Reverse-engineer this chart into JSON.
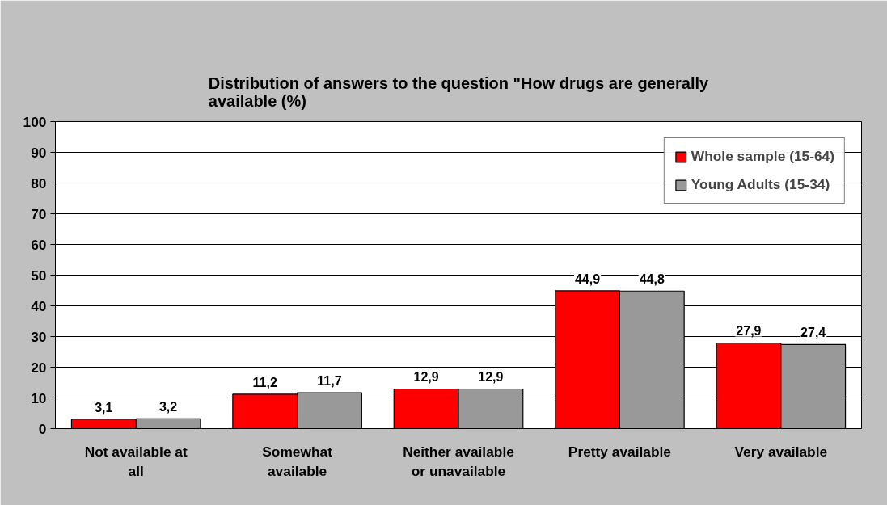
{
  "chart_data": {
    "type": "bar",
    "title": "Distribution of answers to the question \"How drugs are generally available (%)",
    "categories": [
      "Not available at all",
      "Somewhat available",
      "Neither available or unavailable",
      "Pretty available",
      "Very available"
    ],
    "series": [
      {
        "name": "Whole sample (15-64)",
        "color": "#ff0000",
        "values": [
          3.1,
          11.2,
          12.9,
          44.9,
          27.9
        ],
        "value_labels": [
          "3,1",
          "11,2",
          "12,9",
          "44,9",
          "27,9"
        ]
      },
      {
        "name": "Young Adults (15-34)",
        "color": "#999999",
        "values": [
          3.2,
          11.7,
          12.9,
          44.8,
          27.4
        ],
        "value_labels": [
          "3,2",
          "11,7",
          "12,9",
          "44,8",
          "27,4"
        ]
      }
    ],
    "ylim": [
      0,
      100
    ],
    "yticks": [
      0,
      10,
      20,
      30,
      40,
      50,
      60,
      70,
      80,
      90,
      100
    ],
    "grid": "y",
    "legend": "top right"
  }
}
